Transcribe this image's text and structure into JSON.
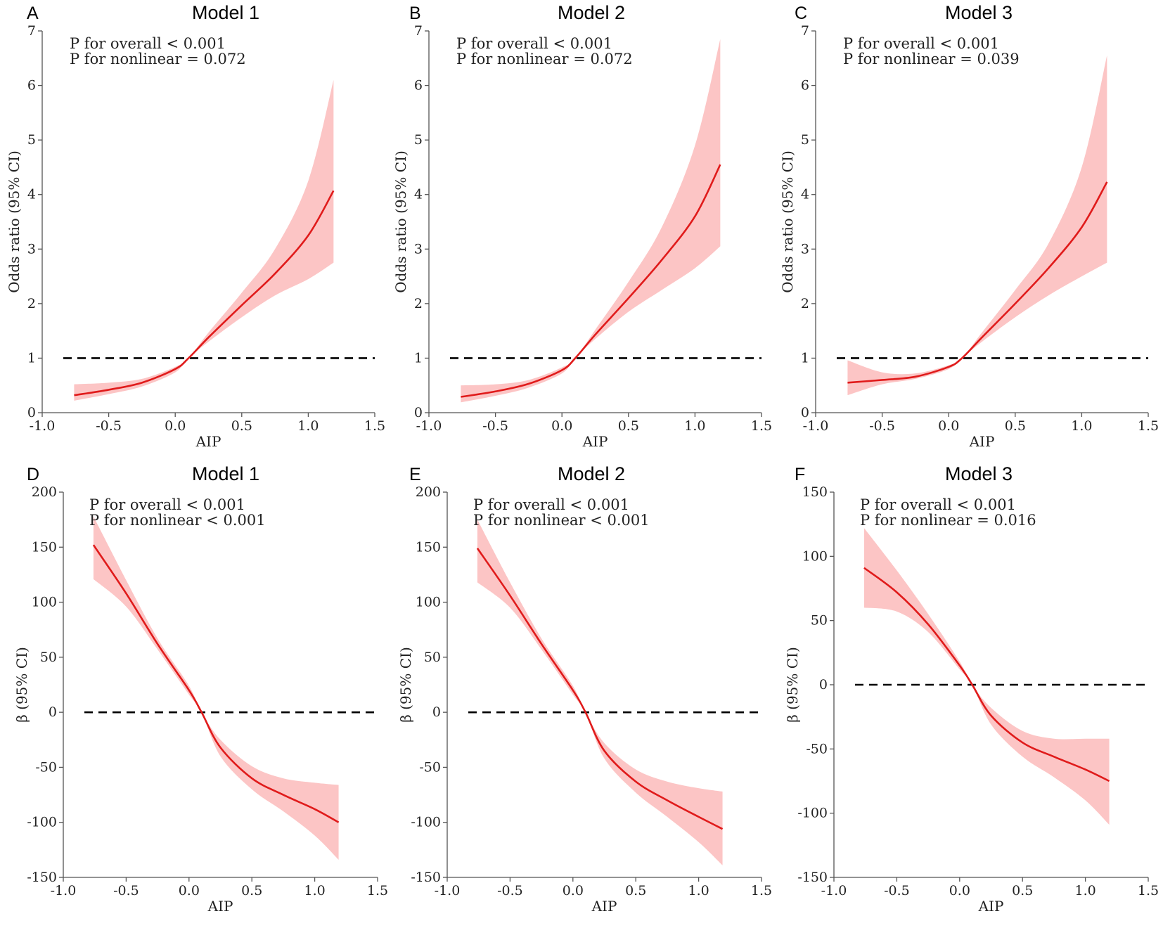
{
  "figure": {
    "ref_line_style": "dashed black",
    "band_color": "#fcc5c5",
    "curve_color": "#e01b1b"
  },
  "chart_data": [
    {
      "panel": "A",
      "title": "Model 1",
      "type": "line",
      "xlabel": "AIP",
      "ylabel": "Odds ratio (95% CI)",
      "xlim": [
        -1.0,
        1.5
      ],
      "ylim": [
        0,
        7
      ],
      "xticks": [
        -1.0,
        -0.5,
        0.0,
        0.5,
        1.0,
        1.5
      ],
      "xtick_labels": [
        "-1.0",
        "-0.5",
        "0.0",
        "0.5",
        "1.0",
        "1.5"
      ],
      "yticks": [
        0,
        1,
        2,
        3,
        4,
        5,
        6,
        7
      ],
      "ytick_labels": [
        "0",
        "1",
        "2",
        "3",
        "4",
        "5",
        "6",
        "7"
      ],
      "ref_line": 1,
      "annotations": [
        "P for overall < 0.001",
        "P for nonlinear = 0.072"
      ],
      "x": [
        -0.76,
        -0.5,
        -0.25,
        0.0,
        0.1,
        0.25,
        0.5,
        0.75,
        1.0,
        1.19
      ],
      "y": [
        0.32,
        0.42,
        0.55,
        0.8,
        1.0,
        1.38,
        1.97,
        2.55,
        3.25,
        4.07
      ],
      "lower": [
        0.22,
        0.34,
        0.48,
        0.74,
        1.0,
        1.3,
        1.75,
        2.15,
        2.45,
        2.75
      ],
      "upper": [
        0.52,
        0.55,
        0.62,
        0.84,
        1.0,
        1.47,
        2.2,
        3.0,
        4.25,
        6.1
      ]
    },
    {
      "panel": "B",
      "title": "Model 2",
      "type": "line",
      "xlabel": "AIP",
      "ylabel": "Odds ratio (95% CI)",
      "xlim": [
        -1.0,
        1.5
      ],
      "ylim": [
        0,
        7
      ],
      "xticks": [
        -1.0,
        -0.5,
        0.0,
        0.5,
        1.0,
        1.5
      ],
      "xtick_labels": [
        "-1.0",
        "-0.5",
        "0.0",
        "0.5",
        "1.0",
        "1.5"
      ],
      "yticks": [
        0,
        1,
        2,
        3,
        4,
        5,
        6,
        7
      ],
      "ytick_labels": [
        "0",
        "1",
        "2",
        "3",
        "4",
        "5",
        "6",
        "7"
      ],
      "ref_line": 1,
      "annotations": [
        "P for overall < 0.001",
        "P for nonlinear = 0.072"
      ],
      "x": [
        -0.76,
        -0.5,
        -0.25,
        0.0,
        0.1,
        0.25,
        0.5,
        0.75,
        1.0,
        1.19
      ],
      "y": [
        0.29,
        0.39,
        0.53,
        0.78,
        1.0,
        1.43,
        2.1,
        2.8,
        3.6,
        4.55
      ],
      "lower": [
        0.19,
        0.31,
        0.46,
        0.72,
        1.0,
        1.35,
        1.85,
        2.25,
        2.65,
        3.05
      ],
      "upper": [
        0.5,
        0.52,
        0.6,
        0.83,
        1.0,
        1.52,
        2.4,
        3.4,
        4.9,
        6.85
      ]
    },
    {
      "panel": "C",
      "title": "Model 3",
      "type": "line",
      "xlabel": "AIP",
      "ylabel": "Odds ratio (95% CI)",
      "xlim": [
        -1.0,
        1.5
      ],
      "ylim": [
        0,
        7
      ],
      "xticks": [
        -1.0,
        -0.5,
        0.0,
        0.5,
        1.0,
        1.5
      ],
      "xtick_labels": [
        "-1.0",
        "-0.5",
        "0.0",
        "0.5",
        "1.0",
        "1.5"
      ],
      "yticks": [
        0,
        1,
        2,
        3,
        4,
        5,
        6,
        7
      ],
      "ytick_labels": [
        "0",
        "1",
        "2",
        "3",
        "4",
        "5",
        "6",
        "7"
      ],
      "ref_line": 1,
      "annotations": [
        "P for overall < 0.001",
        "P for nonlinear = 0.039"
      ],
      "x": [
        -0.76,
        -0.5,
        -0.25,
        0.0,
        0.1,
        0.25,
        0.5,
        0.75,
        1.0,
        1.19
      ],
      "y": [
        0.55,
        0.6,
        0.66,
        0.84,
        1.0,
        1.38,
        2.0,
        2.65,
        3.4,
        4.23
      ],
      "lower": [
        0.32,
        0.52,
        0.62,
        0.8,
        1.0,
        1.3,
        1.75,
        2.15,
        2.5,
        2.75
      ],
      "upper": [
        0.96,
        0.74,
        0.72,
        0.87,
        1.0,
        1.47,
        2.25,
        3.1,
        4.5,
        6.55
      ]
    },
    {
      "panel": "D",
      "title": "Model 1",
      "type": "line",
      "xlabel": "AIP",
      "ylabel": "β (95% CI)",
      "xlim": [
        -1.0,
        1.5
      ],
      "ylim": [
        -150,
        200
      ],
      "xticks": [
        -1.0,
        -0.5,
        0.0,
        0.5,
        1.0,
        1.5
      ],
      "xtick_labels": [
        "-1.0",
        "-0.5",
        "0.0",
        "0.5",
        "1.0",
        "1.5"
      ],
      "yticks": [
        -150,
        -100,
        -50,
        0,
        50,
        100,
        150,
        200
      ],
      "ytick_labels": [
        "-150",
        "-100",
        "-50",
        "0",
        "50",
        "100",
        "150",
        "200"
      ],
      "ref_line": 0,
      "annotations": [
        "P for overall < 0.001",
        "P for nonlinear < 0.001"
      ],
      "x": [
        -0.76,
        -0.5,
        -0.25,
        0.0,
        0.1,
        0.25,
        0.5,
        0.75,
        1.0,
        1.19
      ],
      "y": [
        152,
        108,
        62,
        20,
        0,
        -32,
        -60,
        -75,
        -88,
        -100
      ],
      "lower": [
        121,
        96,
        57,
        16,
        0,
        -40,
        -70,
        -90,
        -112,
        -134
      ],
      "upper": [
        178,
        120,
        67,
        24,
        0,
        -25,
        -49,
        -60,
        -64,
        -66
      ]
    },
    {
      "panel": "E",
      "title": "Model 2",
      "type": "line",
      "xlabel": "AIP",
      "ylabel": "β (95% CI)",
      "xlim": [
        -1.0,
        1.5
      ],
      "ylim": [
        -150,
        200
      ],
      "xticks": [
        -1.0,
        -0.5,
        0.0,
        0.5,
        1.0,
        1.5
      ],
      "xtick_labels": [
        "-1.0",
        "-0.5",
        "0.0",
        "0.5",
        "1.0",
        "1.5"
      ],
      "yticks": [
        -150,
        -100,
        -50,
        0,
        50,
        100,
        150,
        200
      ],
      "ytick_labels": [
        "-150",
        "-100",
        "-50",
        "0",
        "50",
        "100",
        "150",
        "200"
      ],
      "ref_line": 0,
      "annotations": [
        "P for overall < 0.001",
        "P for nonlinear < 0.001"
      ],
      "x": [
        -0.76,
        -0.5,
        -0.25,
        0.0,
        0.1,
        0.25,
        0.5,
        0.75,
        1.0,
        1.19
      ],
      "y": [
        149,
        106,
        62,
        20,
        0,
        -35,
        -63,
        -80,
        -95,
        -106
      ],
      "lower": [
        118,
        95,
        57,
        16,
        0,
        -42,
        -73,
        -95,
        -118,
        -139
      ],
      "upper": [
        175,
        118,
        67,
        24,
        0,
        -28,
        -52,
        -63,
        -69,
        -72
      ]
    },
    {
      "panel": "F",
      "title": "Model 3",
      "type": "line",
      "xlabel": "AIP",
      "ylabel": "β (95% CI)",
      "xlim": [
        -1.0,
        1.5
      ],
      "ylim": [
        -150,
        150
      ],
      "xticks": [
        -1.0,
        -0.5,
        0.0,
        0.5,
        1.0,
        1.5
      ],
      "xtick_labels": [
        "-1.0",
        "-0.5",
        "0.0",
        "0.5",
        "1.0",
        "1.5"
      ],
      "yticks": [
        -150,
        -100,
        -50,
        0,
        50,
        100,
        150
      ],
      "ytick_labels": [
        "-150",
        "-100",
        "-50",
        "0",
        "50",
        "100",
        "150"
      ],
      "ref_line": 0,
      "annotations": [
        "P for overall < 0.001",
        "P for nonlinear = 0.016"
      ],
      "x": [
        -0.76,
        -0.5,
        -0.25,
        0.0,
        0.1,
        0.25,
        0.5,
        0.75,
        1.0,
        1.19
      ],
      "y": [
        91,
        72,
        47,
        15,
        0,
        -24,
        -45,
        -56,
        -66,
        -75
      ],
      "lower": [
        60,
        57,
        41,
        12,
        0,
        -31,
        -56,
        -72,
        -90,
        -109
      ],
      "upper": [
        122,
        89,
        55,
        18,
        0,
        -18,
        -36,
        -42,
        -42,
        -42
      ]
    }
  ]
}
